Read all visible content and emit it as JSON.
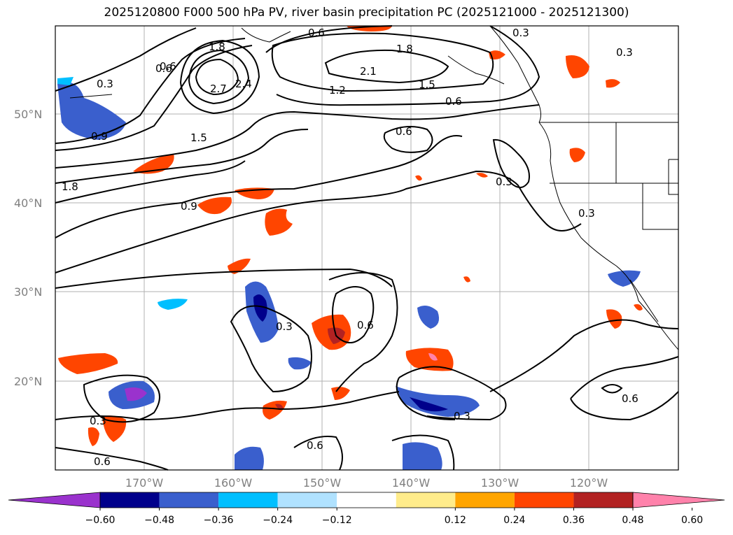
{
  "title": "2025120800 F000 500 hPa PV, river basin precipitation PC (2025121000 - 2025121300)",
  "lat_labels": [
    "50°N",
    "40°N",
    "30°N",
    "20°N"
  ],
  "lon_labels": [
    "170°W",
    "160°W",
    "150°W",
    "140°W",
    "130°W",
    "120°W"
  ],
  "contour_labels": [
    "0.3",
    "0.6",
    "1.8",
    "0.6",
    "0.3",
    "0.3",
    "1.8",
    "2.1",
    "1.5",
    "1.2",
    "0.6",
    "2.7",
    "2.4",
    "0.6",
    "1.5",
    "0.9",
    "1.8",
    "0.9",
    "0.6",
    "0.3",
    "0.3",
    "0.6",
    "0.3",
    "0.3",
    "0.6",
    "0.3",
    "0.6",
    "0.6"
  ],
  "colorbar": {
    "colors": [
      "#9a32cd",
      "#00008b",
      "#3a5fcd",
      "#00bfff",
      "#b0e2ff",
      "#ffffff",
      "#ffec8b",
      "#ffa500",
      "#ff4500",
      "#b22222",
      "#ff82ab"
    ],
    "tick_labels": [
      "−0.60",
      "−0.48",
      "−0.36",
      "−0.24",
      "−0.12",
      "0.12",
      "0.24",
      "0.36",
      "0.48",
      "0.60"
    ]
  }
}
